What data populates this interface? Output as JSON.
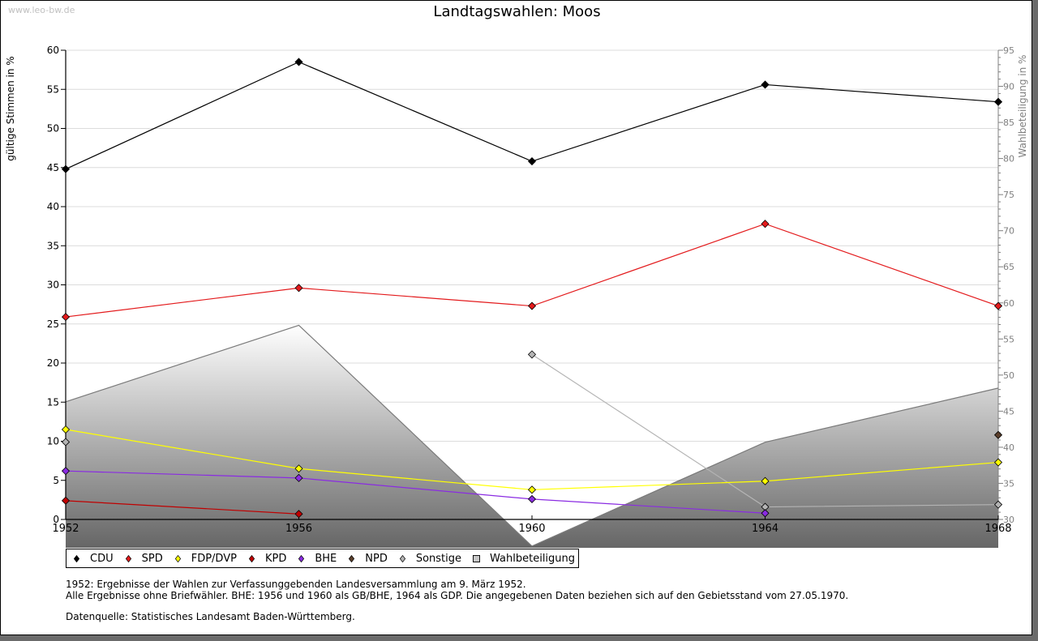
{
  "watermark": "www.leo-bw.de",
  "chart_data": {
    "type": "line",
    "title": "Landtagswahlen: Moos",
    "xlabel": "",
    "ylabel": "gültige Stimmen in %",
    "y2label": "Wahlbeteiligung in %",
    "x": [
      "1952",
      "1956",
      "1960",
      "1964",
      "1968"
    ],
    "ylim": [
      0,
      60
    ],
    "y2lim": [
      30,
      95
    ],
    "yticks": [
      0,
      5,
      10,
      15,
      20,
      25,
      30,
      35,
      40,
      45,
      50,
      55,
      60
    ],
    "y2ticks": [
      30,
      35,
      40,
      45,
      50,
      55,
      60,
      65,
      70,
      75,
      80,
      85,
      90,
      95
    ],
    "grid": true,
    "legend_position": "bottom",
    "series": [
      {
        "name": "CDU",
        "color": "#000000",
        "values": [
          44.8,
          58.5,
          45.8,
          55.6,
          53.4
        ]
      },
      {
        "name": "SPD",
        "color": "#e31a1c",
        "values": [
          25.9,
          29.6,
          27.3,
          37.8,
          27.3
        ]
      },
      {
        "name": "FDP/DVP",
        "color": "#ffff00",
        "values": [
          11.5,
          6.5,
          3.8,
          4.9,
          7.3
        ]
      },
      {
        "name": "KPD",
        "color": "#c00000",
        "values": [
          2.4,
          0.7,
          null,
          null,
          null
        ]
      },
      {
        "name": "BHE",
        "color": "#8a2be2",
        "values": [
          6.2,
          5.3,
          2.6,
          0.8,
          null
        ]
      },
      {
        "name": "NPD",
        "color": "#5a3e2b",
        "values": [
          null,
          null,
          null,
          null,
          10.8
        ]
      },
      {
        "name": "Sonstige",
        "color": "#b4b4b4",
        "values": [
          9.9,
          null,
          21.1,
          1.6,
          1.9
        ]
      },
      {
        "name": "Wahlbeteiligung",
        "color": "#888888",
        "axis": "right",
        "type": "area",
        "values": [
          46.3,
          56.9,
          26.3,
          40.7,
          48.2
        ]
      }
    ]
  },
  "notes": {
    "line1": "1952: Ergebnisse der Wahlen zur Verfassunggebenden Landesversammlung am 9. März 1952.",
    "line2": "Alle Ergebnisse ohne Briefwähler. BHE: 1956 und 1960 als GB/BHE, 1964 als GDP. Die angegebenen Daten beziehen sich auf den Gebietsstand vom 27.05.1970.",
    "source": "Datenquelle: Statistisches Landesamt Baden-Württemberg."
  }
}
